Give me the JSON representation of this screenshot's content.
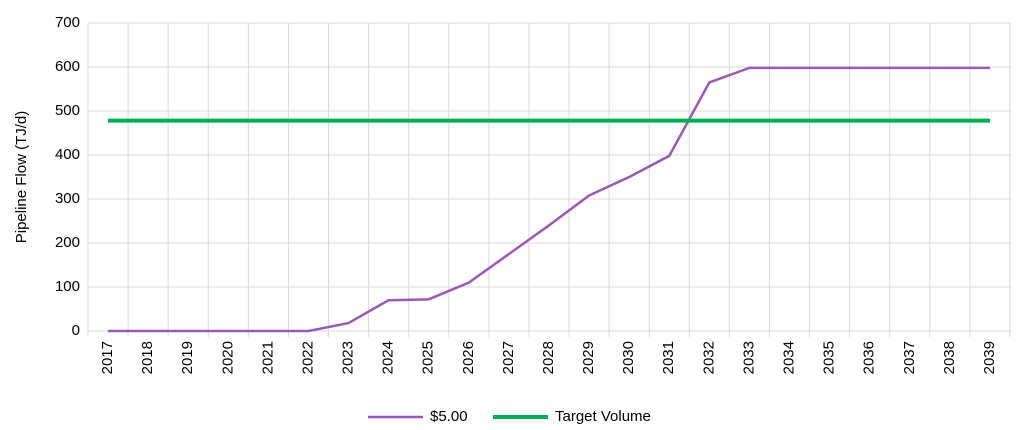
{
  "chart_data": {
    "type": "line",
    "y_label": "Pipeline Flow (TJ/d)",
    "categories": [
      "2017",
      "2018",
      "2019",
      "2020",
      "2021",
      "2022",
      "2023",
      "2024",
      "2025",
      "2026",
      "2027",
      "2028",
      "2029",
      "2030",
      "2031",
      "2032",
      "2033",
      "2034",
      "2035",
      "2036",
      "2037",
      "2038",
      "2039"
    ],
    "series": [
      {
        "name": "$5.00",
        "color": "#9b59b6",
        "values": [
          0,
          0,
          0,
          0,
          0,
          0,
          18,
          70,
          72,
          110,
          175,
          240,
          308,
          350,
          398,
          565,
          598,
          598,
          598,
          598,
          598,
          598,
          598
        ]
      },
      {
        "name": "Target Volume",
        "color": "#00b050",
        "values": [
          478,
          478,
          478,
          478,
          478,
          478,
          478,
          478,
          478,
          478,
          478,
          478,
          478,
          478,
          478,
          478,
          478,
          478,
          478,
          478,
          478,
          478,
          478
        ]
      }
    ],
    "ylim": [
      0,
      700
    ],
    "yticks": [
      0,
      100,
      200,
      300,
      400,
      500,
      600,
      700
    ],
    "grid": true,
    "legend": "bottom"
  }
}
